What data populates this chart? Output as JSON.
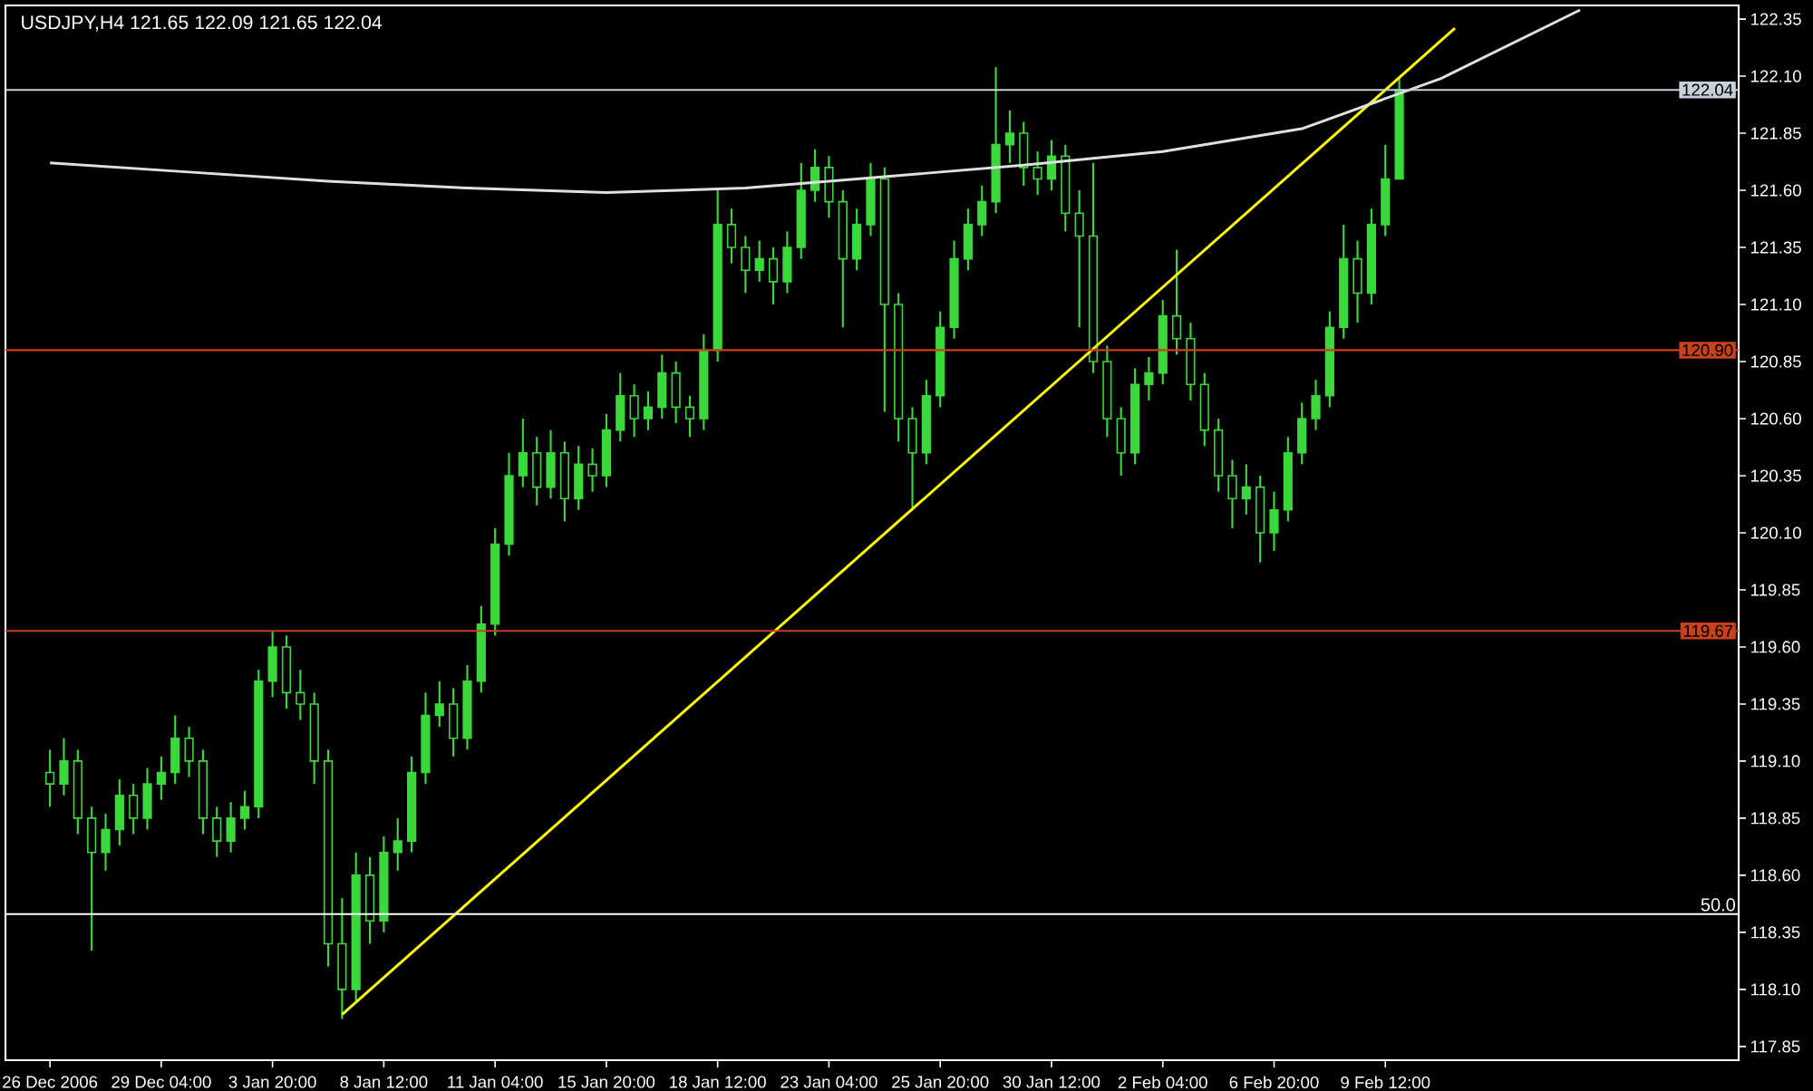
{
  "chart_data": {
    "type": "candlestick",
    "title": "USDJPY,H4  121.65 122.09 121.65 122.04",
    "color": "#3ad83a",
    "categories": [
      "26 Dec 2006",
      null,
      null,
      null,
      null,
      null,
      null,
      null,
      "29 Dec 04:00",
      null,
      null,
      null,
      null,
      null,
      null,
      null,
      "3 Jan 20:00",
      null,
      null,
      null,
      null,
      null,
      null,
      null,
      "8 Jan 12:00",
      null,
      null,
      null,
      null,
      null,
      null,
      null,
      "11 Jan 04:00",
      null,
      null,
      null,
      null,
      null,
      null,
      null,
      "15 Jan 20:00",
      null,
      null,
      null,
      null,
      null,
      null,
      null,
      "18 Jan 12:00",
      null,
      null,
      null,
      null,
      null,
      null,
      null,
      "23 Jan 04:00",
      null,
      null,
      null,
      null,
      null,
      null,
      null,
      "25 Jan 20:00",
      null,
      null,
      null,
      null,
      null,
      null,
      null,
      "30 Jan 12:00",
      null,
      null,
      null,
      null,
      null,
      null,
      null,
      "2 Feb 04:00",
      null,
      null,
      null,
      null,
      null,
      null,
      null,
      "6 Feb 20:00",
      null,
      null,
      null,
      null,
      null,
      null,
      null,
      "9 Feb 12:00",
      null,
      null,
      null,
      null,
      null,
      null,
      null,
      null,
      null,
      null,
      null,
      null,
      null,
      null,
      null,
      null,
      null,
      null,
      null,
      null,
      null,
      null,
      null,
      null,
      null
    ],
    "ohlc": [
      [
        119.05,
        119.15,
        118.9,
        119.0
      ],
      [
        119.0,
        119.2,
        118.95,
        119.1
      ],
      [
        119.1,
        119.15,
        118.78,
        118.85
      ],
      [
        118.85,
        118.9,
        118.27,
        118.7
      ],
      [
        118.7,
        118.87,
        118.62,
        118.8
      ],
      [
        118.8,
        119.02,
        118.73,
        118.95
      ],
      [
        118.95,
        119.0,
        118.78,
        118.85
      ],
      [
        118.85,
        119.07,
        118.8,
        119.0
      ],
      [
        119.0,
        119.12,
        118.93,
        119.05
      ],
      [
        119.05,
        119.3,
        119.0,
        119.2
      ],
      [
        119.2,
        119.25,
        119.03,
        119.1
      ],
      [
        119.1,
        119.15,
        118.78,
        118.85
      ],
      [
        118.85,
        118.9,
        118.68,
        118.75
      ],
      [
        118.75,
        118.92,
        118.7,
        118.85
      ],
      [
        118.85,
        118.97,
        118.8,
        118.9
      ],
      [
        118.9,
        119.5,
        118.85,
        119.45
      ],
      [
        119.45,
        119.67,
        119.38,
        119.6
      ],
      [
        119.6,
        119.65,
        119.33,
        119.4
      ],
      [
        119.4,
        119.5,
        119.28,
        119.35
      ],
      [
        119.35,
        119.4,
        119.0,
        119.1
      ],
      [
        119.1,
        119.15,
        118.2,
        118.3
      ],
      [
        118.3,
        118.5,
        117.97,
        118.1
      ],
      [
        118.1,
        118.7,
        118.05,
        118.6
      ],
      [
        118.6,
        118.68,
        118.3,
        118.4
      ],
      [
        118.4,
        118.77,
        118.35,
        118.7
      ],
      [
        118.7,
        118.85,
        118.62,
        118.75
      ],
      [
        118.75,
        119.12,
        118.7,
        119.05
      ],
      [
        119.05,
        119.4,
        119.0,
        119.3
      ],
      [
        119.3,
        119.45,
        119.25,
        119.35
      ],
      [
        119.35,
        119.42,
        119.12,
        119.2
      ],
      [
        119.2,
        119.52,
        119.15,
        119.45
      ],
      [
        119.45,
        119.78,
        119.4,
        119.7
      ],
      [
        119.7,
        120.12,
        119.65,
        120.05
      ],
      [
        120.05,
        120.45,
        120.0,
        120.35
      ],
      [
        120.35,
        120.6,
        120.3,
        120.45
      ],
      [
        120.45,
        120.52,
        120.22,
        120.3
      ],
      [
        120.3,
        120.55,
        120.25,
        120.45
      ],
      [
        120.45,
        120.5,
        120.15,
        120.25
      ],
      [
        120.25,
        120.48,
        120.2,
        120.4
      ],
      [
        120.4,
        120.47,
        120.28,
        120.35
      ],
      [
        120.35,
        120.62,
        120.3,
        120.55
      ],
      [
        120.55,
        120.8,
        120.5,
        120.7
      ],
      [
        120.7,
        120.75,
        120.52,
        120.6
      ],
      [
        120.6,
        120.72,
        120.55,
        120.65
      ],
      [
        120.65,
        120.88,
        120.6,
        120.8
      ],
      [
        120.8,
        120.85,
        120.58,
        120.65
      ],
      [
        120.65,
        120.7,
        120.52,
        120.6
      ],
      [
        120.6,
        120.97,
        120.55,
        120.9
      ],
      [
        120.9,
        121.6,
        120.85,
        121.45
      ],
      [
        121.45,
        121.52,
        121.28,
        121.35
      ],
      [
        121.35,
        121.4,
        121.15,
        121.25
      ],
      [
        121.25,
        121.38,
        121.2,
        121.3
      ],
      [
        121.3,
        121.35,
        121.1,
        121.2
      ],
      [
        121.2,
        121.42,
        121.15,
        121.35
      ],
      [
        121.35,
        121.72,
        121.3,
        121.6
      ],
      [
        121.6,
        121.78,
        121.55,
        121.7
      ],
      [
        121.7,
        121.75,
        121.48,
        121.55
      ],
      [
        121.55,
        121.6,
        121.0,
        121.3
      ],
      [
        121.3,
        121.52,
        121.25,
        121.45
      ],
      [
        121.45,
        121.72,
        121.4,
        121.65
      ],
      [
        121.65,
        121.7,
        120.63,
        121.1
      ],
      [
        121.1,
        121.15,
        120.5,
        120.6
      ],
      [
        120.6,
        120.65,
        120.21,
        120.45
      ],
      [
        120.45,
        120.77,
        120.4,
        120.7
      ],
      [
        120.7,
        121.07,
        120.65,
        121.0
      ],
      [
        121.0,
        121.38,
        120.95,
        121.3
      ],
      [
        121.3,
        121.52,
        121.25,
        121.45
      ],
      [
        121.45,
        121.62,
        121.4,
        121.55
      ],
      [
        121.55,
        122.14,
        121.5,
        121.8
      ],
      [
        121.8,
        121.95,
        121.72,
        121.85
      ],
      [
        121.85,
        121.9,
        121.62,
        121.7
      ],
      [
        121.7,
        121.77,
        121.58,
        121.65
      ],
      [
        121.65,
        121.82,
        121.6,
        121.75
      ],
      [
        121.75,
        121.8,
        121.42,
        121.5
      ],
      [
        121.5,
        121.6,
        121.0,
        121.4
      ],
      [
        121.4,
        121.72,
        120.8,
        120.85
      ],
      [
        120.85,
        120.92,
        120.52,
        120.6
      ],
      [
        120.6,
        120.65,
        120.35,
        120.45
      ],
      [
        120.45,
        120.82,
        120.4,
        120.75
      ],
      [
        120.75,
        120.87,
        120.68,
        120.8
      ],
      [
        120.8,
        121.12,
        120.75,
        121.05
      ],
      [
        121.05,
        121.34,
        120.88,
        120.95
      ],
      [
        120.95,
        121.02,
        120.68,
        120.75
      ],
      [
        120.75,
        120.8,
        120.48,
        120.55
      ],
      [
        120.55,
        120.6,
        120.28,
        120.35
      ],
      [
        120.35,
        120.42,
        120.12,
        120.25
      ],
      [
        120.25,
        120.4,
        120.18,
        120.3
      ],
      [
        120.3,
        120.35,
        119.97,
        120.1
      ],
      [
        120.1,
        120.28,
        120.02,
        120.2
      ],
      [
        120.2,
        120.52,
        120.15,
        120.45
      ],
      [
        120.45,
        120.67,
        120.4,
        120.6
      ],
      [
        120.6,
        120.77,
        120.55,
        120.7
      ],
      [
        120.7,
        121.07,
        120.65,
        121.0
      ],
      [
        121.0,
        121.45,
        120.95,
        121.3
      ],
      [
        121.3,
        121.38,
        121.02,
        121.15
      ],
      [
        121.15,
        121.52,
        121.1,
        121.45
      ],
      [
        121.45,
        121.8,
        121.4,
        121.65
      ],
      [
        121.65,
        122.09,
        121.65,
        122.04
      ],
      null,
      null,
      null,
      null,
      null,
      null,
      null,
      null,
      null,
      null,
      null,
      null,
      null,
      null,
      null,
      null,
      null,
      null,
      null,
      null,
      null,
      null,
      null,
      null
    ],
    "series": [
      {
        "type": "line",
        "color": "#ffff00",
        "values": [
          null,
          null,
          null,
          null,
          null,
          null,
          null,
          null,
          null,
          null,
          null,
          null,
          null,
          null,
          null,
          null,
          null,
          null,
          null,
          null,
          null,
          117.99,
          null,
          null,
          null,
          null,
          null,
          null,
          null,
          null,
          null,
          null,
          null,
          null,
          null,
          null,
          null,
          null,
          null,
          null,
          null,
          null,
          null,
          null,
          null,
          null,
          null,
          null,
          null,
          null,
          null,
          null,
          null,
          null,
          null,
          null,
          null,
          null,
          null,
          null,
          null,
          null,
          null,
          null,
          null,
          null,
          null,
          null,
          null,
          null,
          null,
          null,
          null,
          null,
          null,
          null,
          null,
          null,
          null,
          null,
          null,
          null,
          null,
          null,
          null,
          null,
          null,
          null,
          null,
          null,
          null,
          null,
          null,
          null,
          null,
          null,
          null,
          null,
          null,
          null,
          null,
          122.31,
          null,
          null,
          null,
          null,
          null,
          null,
          null,
          null,
          null,
          null,
          null,
          null,
          null,
          null,
          null,
          null,
          null,
          null,
          null,
          null
        ]
      },
      {
        "type": "line",
        "color": "#e0e0e0",
        "values": [
          121.72,
          null,
          null,
          null,
          null,
          null,
          null,
          null,
          null,
          null,
          121.68,
          null,
          null,
          null,
          null,
          null,
          null,
          null,
          null,
          null,
          121.64,
          null,
          null,
          null,
          null,
          null,
          null,
          null,
          null,
          null,
          121.61,
          null,
          null,
          null,
          null,
          null,
          null,
          null,
          null,
          null,
          121.59,
          null,
          null,
          null,
          null,
          null,
          null,
          null,
          null,
          null,
          121.61,
          null,
          null,
          null,
          null,
          null,
          null,
          null,
          null,
          null,
          121.66,
          null,
          null,
          null,
          null,
          null,
          null,
          null,
          null,
          null,
          121.71,
          null,
          null,
          null,
          null,
          null,
          null,
          null,
          null,
          null,
          121.77,
          null,
          null,
          null,
          null,
          null,
          null,
          null,
          null,
          null,
          121.87,
          null,
          null,
          null,
          null,
          null,
          null,
          null,
          null,
          null,
          122.09,
          null,
          null,
          null,
          null,
          null,
          null,
          null,
          null,
          null,
          122.39,
          null,
          null,
          null,
          null,
          null,
          null,
          null,
          null,
          null,
          null,
          null
        ]
      }
    ],
    "ylim": [
      117.79,
      122.41
    ],
    "yticks": [
      117.85,
      {
        "value": 118.1,
        "label": "118.10"
      },
      118.35,
      {
        "value": 118.6,
        "label": "118.60"
      },
      118.85,
      {
        "value": 119.1,
        "label": "119.10"
      },
      119.35,
      {
        "value": 119.6,
        "label": "119.60"
      },
      119.85,
      {
        "value": 120.1,
        "label": "120.10"
      },
      120.35,
      {
        "value": 120.6,
        "label": "120.60"
      },
      120.85,
      {
        "value": 121.1,
        "label": "121.10"
      },
      121.35,
      {
        "value": 121.6,
        "label": "121.60"
      },
      121.85,
      {
        "value": 122.1,
        "label": "122.10"
      },
      122.35
    ],
    "ref_lines": [
      {
        "axis": "y",
        "value": 122.04,
        "label": "122.04",
        "color": "#c8d0dc"
      },
      {
        "axis": "y",
        "value": 120.9,
        "label": "120.90",
        "color": "#c8401c"
      },
      {
        "axis": "y",
        "value": 119.67,
        "label": "119.67",
        "color": "#c8401c"
      },
      {
        "axis": "y",
        "value": 118.43,
        "color": "#ffffff"
      }
    ],
    "annotations": [
      {
        "text": "50.0",
        "y": 118.43
      }
    ]
  }
}
